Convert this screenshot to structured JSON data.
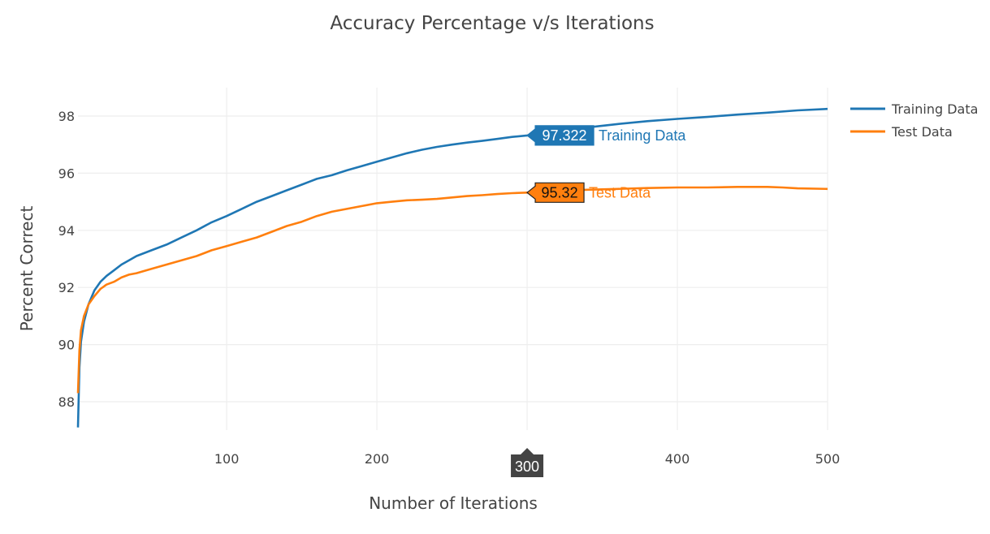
{
  "chart_data": {
    "type": "line",
    "title": "Accuracy Percentage v/s Iterations",
    "xlabel": "Number of Iterations",
    "ylabel": "Percent Correct",
    "xlim": [
      1,
      500
    ],
    "ylim": [
      87,
      99
    ],
    "x_ticks": [
      100,
      200,
      300,
      400,
      500
    ],
    "y_ticks": [
      88,
      90,
      92,
      94,
      96,
      98
    ],
    "grid": true,
    "legend_position": "top-right",
    "series": [
      {
        "name": "Training Data",
        "color": "#1f77b4",
        "x": [
          1,
          2,
          3,
          5,
          8,
          12,
          16,
          20,
          25,
          30,
          35,
          40,
          50,
          60,
          70,
          80,
          90,
          100,
          110,
          120,
          130,
          140,
          150,
          160,
          170,
          180,
          190,
          200,
          210,
          220,
          230,
          240,
          250,
          260,
          270,
          280,
          290,
          300,
          310,
          320,
          340,
          360,
          380,
          400,
          420,
          440,
          460,
          480,
          500
        ],
        "y": [
          87.1,
          89.2,
          90.1,
          90.8,
          91.4,
          91.9,
          92.2,
          92.4,
          92.6,
          92.8,
          92.95,
          93.1,
          93.3,
          93.5,
          93.75,
          94.0,
          94.28,
          94.5,
          94.75,
          95.0,
          95.2,
          95.4,
          95.6,
          95.8,
          95.93,
          96.1,
          96.25,
          96.4,
          96.55,
          96.7,
          96.82,
          96.92,
          97.0,
          97.07,
          97.13,
          97.2,
          97.27,
          97.322,
          97.4,
          97.48,
          97.6,
          97.72,
          97.82,
          97.9,
          97.97,
          98.05,
          98.12,
          98.2,
          98.25
        ]
      },
      {
        "name": "Test Data",
        "color": "#ff7f0e",
        "x": [
          1,
          2,
          3,
          5,
          8,
          12,
          16,
          20,
          25,
          30,
          35,
          40,
          50,
          60,
          70,
          80,
          90,
          100,
          110,
          120,
          130,
          140,
          150,
          160,
          170,
          180,
          190,
          200,
          210,
          220,
          230,
          240,
          250,
          260,
          270,
          280,
          290,
          300,
          310,
          320,
          340,
          360,
          380,
          400,
          420,
          440,
          460,
          470,
          480,
          500
        ],
        "y": [
          88.3,
          89.8,
          90.5,
          91.0,
          91.4,
          91.7,
          91.95,
          92.1,
          92.2,
          92.35,
          92.45,
          92.5,
          92.65,
          92.8,
          92.95,
          93.1,
          93.3,
          93.45,
          93.6,
          93.75,
          93.95,
          94.15,
          94.3,
          94.5,
          94.65,
          94.75,
          94.85,
          94.95,
          95.0,
          95.05,
          95.07,
          95.1,
          95.15,
          95.2,
          95.23,
          95.27,
          95.3,
          95.32,
          95.35,
          95.38,
          95.42,
          95.45,
          95.48,
          95.5,
          95.5,
          95.52,
          95.52,
          95.5,
          95.47,
          95.45
        ]
      }
    ],
    "hover": {
      "x_label": "300",
      "points": [
        {
          "series": "Training Data",
          "value_text": "97.322",
          "x": 300,
          "y": 97.322
        },
        {
          "series": "Test Data",
          "value_text": "95.32",
          "x": 300,
          "y": 95.32
        }
      ]
    }
  }
}
